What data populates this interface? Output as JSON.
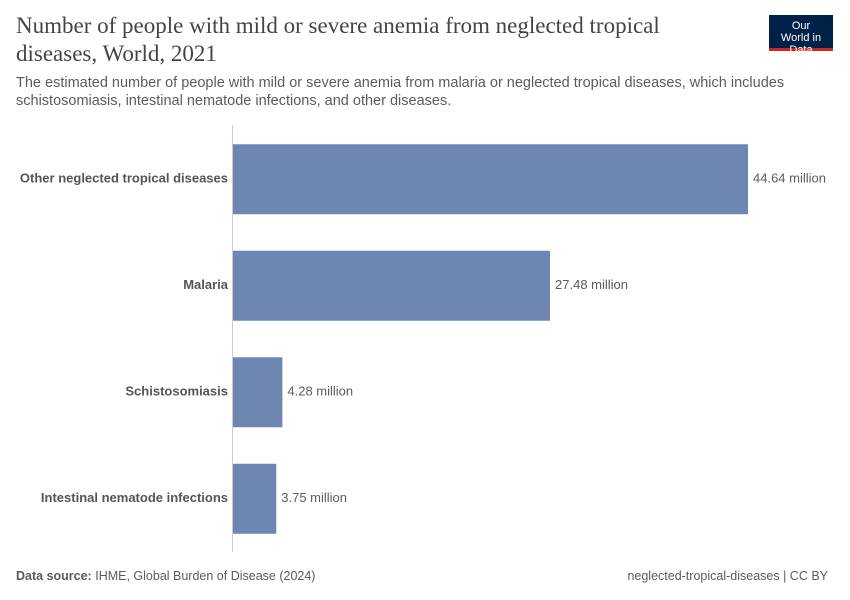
{
  "chart_data": {
    "type": "bar",
    "orientation": "horizontal",
    "title": "Number of people with mild or severe anemia from neglected tropical diseases, World, 2021",
    "subtitle": "The estimated number of people with mild or severe anemia from malaria or neglected tropical diseases, which includes schistosomiasis, intestinal nematode infections, and other diseases.",
    "logo": "Our World in Data",
    "source_label": "Data source:",
    "source": "IHME, Global Burden of Disease (2024)",
    "footer_right": "neglected-tropical-diseases | CC BY",
    "categories": [
      "Other neglected tropical diseases",
      "Malaria",
      "Schistosomiasis",
      "Intestinal nematode infections"
    ],
    "values": [
      44.64,
      27.48,
      4.28,
      3.75
    ],
    "value_labels": [
      "44.64 million",
      "27.48 million",
      "4.28 million",
      "3.75 million"
    ],
    "color": "#6d87b2"
  }
}
